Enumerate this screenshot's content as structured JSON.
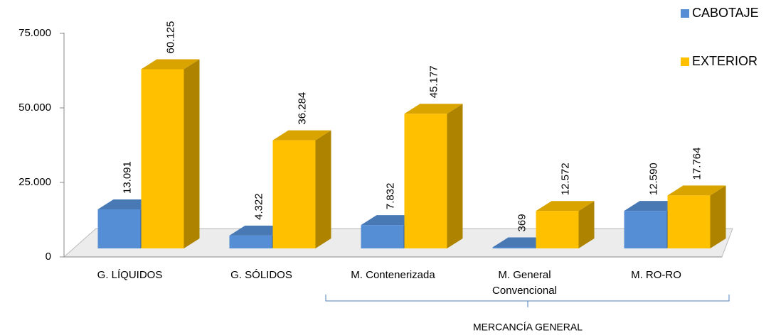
{
  "chart_data": {
    "type": "bar3d",
    "categories": [
      "G. LÍQUIDOS",
      "G.   SÓLIDOS",
      "M. Contenerizada",
      "M. General Convencional",
      "M. RO-RO"
    ],
    "series": [
      {
        "name": "CABOTAJE",
        "color": "#558ed5",
        "values": [
          13091,
          4322,
          7832,
          369,
          12590
        ],
        "value_labels": [
          "13.091",
          "4.322",
          "7.832",
          "369",
          "12.590"
        ]
      },
      {
        "name": "EXTERIOR",
        "color": "#ffc000",
        "values": [
          60125,
          36284,
          45177,
          12572,
          17764
        ],
        "value_labels": [
          "60.125",
          "36.284",
          "45.177",
          "12.572",
          "17.764"
        ]
      }
    ],
    "ylim": [
      0,
      75000
    ],
    "yticks": [
      0,
      {
        "value": 25000,
        "label": "25.000"
      },
      {
        "value": 50000,
        "label": "50.000"
      },
      {
        "value": 75000,
        "label": "75.000"
      }
    ],
    "annotation": "MERCANCÍA GENERAL",
    "legend": "top-right"
  }
}
